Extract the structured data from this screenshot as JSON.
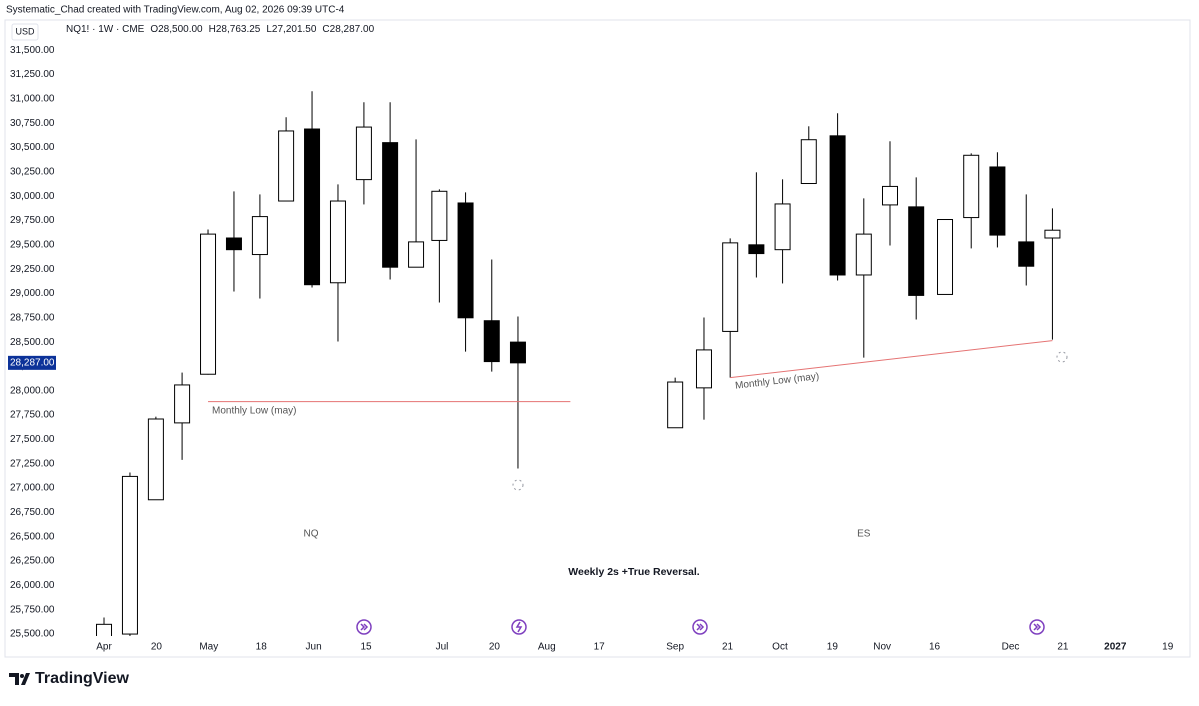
{
  "header": "Systematic_Chad created with TradingView.com, Aug 02, 2026 09:39 UTC-4",
  "footer": "TradingView",
  "chart_data": {
    "type": "candlestick",
    "symbol": "NQ1! · 1W · CME",
    "legend_ohlc": [
      {
        "key": "O",
        "value": "28,500.00"
      },
      {
        "key": "H",
        "value": "28,763.25"
      },
      {
        "key": "L",
        "value": "27,201.50"
      },
      {
        "key": "C",
        "value": "28,287.00"
      }
    ],
    "currency": "USD",
    "up_color": "#ffffff",
    "down_color": "#000000",
    "border_color": "#000000",
    "grid": false,
    "last_price": {
      "value": 28287,
      "label": "28,287.00",
      "color": "#0c3299"
    },
    "series": [
      {
        "name": "NQ",
        "x": [
          0,
          0.99,
          1.98,
          2.98,
          3.97,
          4.96,
          5.95,
          6.95,
          7.94,
          8.93,
          9.92,
          10.92,
          11.91,
          12.8,
          13.8,
          14.8,
          15.8
        ],
        "open": [
          25450,
          25500,
          26880,
          27670,
          28170,
          29570,
          29400,
          29950,
          30690,
          29110,
          30170,
          30550,
          29270,
          29545,
          29930,
          28720,
          28500
        ],
        "high": [
          25670,
          27160,
          27734,
          28187,
          29658,
          30049,
          30018,
          30811,
          31078,
          30121,
          30965,
          30965,
          30584,
          30070,
          30039,
          29349,
          28763.25
        ],
        "low": [
          25400,
          25400,
          26880,
          27290,
          28166,
          29020,
          28948,
          29946,
          29061,
          28506,
          29915,
          29143,
          29270,
          28907,
          28403,
          28197,
          27201.5
        ],
        "close": [
          25600,
          27120,
          27710,
          28060,
          29610,
          29450,
          29790,
          30670,
          29090,
          29950,
          30710,
          29270,
          29530,
          30050,
          28750,
          28300,
          28287
        ]
      },
      {
        "name": "ES",
        "x": [
          21.8,
          22.9,
          23.9,
          24.9,
          25.9,
          26.9,
          28.0,
          29.0,
          30.0,
          31.0,
          32.1,
          33.1,
          34.1,
          35.2,
          36.2
        ],
        "open": [
          27620,
          28030,
          28610,
          29500,
          29450,
          30130,
          30620,
          29190,
          29910,
          29890,
          28990,
          29780,
          30300,
          29530,
          29570
        ],
        "high": [
          28135,
          28753,
          29566,
          30245,
          30173,
          30718,
          30852,
          29977,
          30564,
          30193,
          29760,
          30440,
          30451,
          30018,
          29874
        ],
        "low": [
          27620,
          27703,
          28135,
          29164,
          29103,
          30131,
          29133,
          28341,
          29493,
          28732,
          28990,
          29463,
          29473,
          29082,
          28526
        ],
        "close": [
          28090,
          28420,
          29520,
          29410,
          29920,
          30580,
          29190,
          29610,
          30100,
          28980,
          29760,
          30420,
          29600,
          29280,
          29650
        ]
      }
    ],
    "lines": [
      {
        "label": "Monthly Low (may)",
        "color": "#e57373",
        "x": [
          3.97,
          17.8
        ],
        "y": [
          27888,
          27888
        ]
      },
      {
        "label": "Monthly Low (may)",
        "color": "#e57373",
        "x": [
          23.9,
          36.2
        ],
        "y": [
          28135,
          28516
        ]
      }
    ],
    "annotations": [
      "Weekly 2s +True Reversal."
    ],
    "xlim": [
      -1.68,
      41.26
    ],
    "xticks": [
      {
        "value": 0,
        "label": "Apr"
      },
      {
        "value": 2,
        "label": "20"
      },
      {
        "value": 4,
        "label": "May"
      },
      {
        "value": 6,
        "label": "18"
      },
      {
        "value": 8,
        "label": "Jun"
      },
      {
        "value": 10,
        "label": "15"
      },
      {
        "value": 12.9,
        "label": "Jul"
      },
      {
        "value": 14.9,
        "label": "20"
      },
      {
        "value": 16.9,
        "label": "Aug"
      },
      {
        "value": 18.9,
        "label": "17"
      },
      {
        "value": 21.8,
        "label": "Sep"
      },
      {
        "value": 23.8,
        "label": "21"
      },
      {
        "value": 25.8,
        "label": "Oct"
      },
      {
        "value": 27.8,
        "label": "19"
      },
      {
        "value": 29.7,
        "label": "Nov"
      },
      {
        "value": 31.7,
        "label": "16"
      },
      {
        "value": 34.6,
        "label": "Dec"
      },
      {
        "value": 36.6,
        "label": "21"
      },
      {
        "value": 38.6,
        "label": "2027"
      },
      {
        "value": 40.6,
        "label": "19"
      }
    ],
    "ylim": [
      25480,
      31800
    ],
    "yticks": [
      {
        "value": 25500,
        "label": "25,500.00"
      },
      {
        "value": 25750,
        "label": "25,750.00"
      },
      {
        "value": 26000,
        "label": "26,000.00"
      },
      {
        "value": 26250,
        "label": "26,250.00"
      },
      {
        "value": 26500,
        "label": "26,500.00"
      },
      {
        "value": 26750,
        "label": "26,750.00"
      },
      {
        "value": 27000,
        "label": "27,000.00"
      },
      {
        "value": 27250,
        "label": "27,250.00"
      },
      {
        "value": 27500,
        "label": "27,500.00"
      },
      {
        "value": 27750,
        "label": "27,750.00"
      },
      {
        "value": 28000,
        "label": "28,000.00"
      },
      {
        "value": 28250,
        "label": "28,250.00"
      },
      {
        "value": 28500,
        "label": "28,500.00"
      },
      {
        "value": 28750,
        "label": "28,750.00"
      },
      {
        "value": 29000,
        "label": "29,000.00"
      },
      {
        "value": 29250,
        "label": "29,250.00"
      },
      {
        "value": 29500,
        "label": "29,500.00"
      },
      {
        "value": 29750,
        "label": "29,750.00"
      },
      {
        "value": 30000,
        "label": "30,000.00"
      },
      {
        "value": 30250,
        "label": "30,250.00"
      },
      {
        "value": 30500,
        "label": "30,500.00"
      },
      {
        "value": 30750,
        "label": "30,750.00"
      },
      {
        "value": 31000,
        "label": "31,000.00"
      },
      {
        "value": 31250,
        "label": "31,250.00"
      },
      {
        "value": 31500,
        "label": "31,500.00"
      }
    ]
  }
}
